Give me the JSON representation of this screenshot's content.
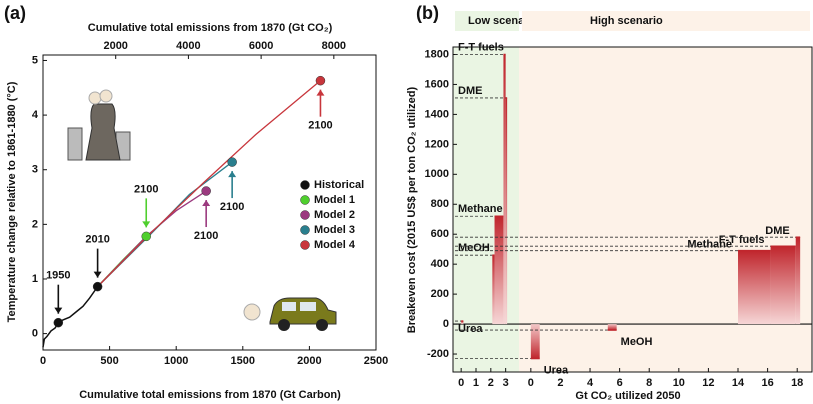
{
  "chart_data": [
    {
      "type": "line",
      "panel_label": "(a)",
      "xlabel": "Cumulative total emissions from 1870 (Gt Carbon)",
      "x2label": "Cumulative total emissions from 1870 (Gt CO₂)",
      "ylabel": "Temperature change relative to 1861-1880 (°C)",
      "xlim": [
        0,
        2500
      ],
      "xticks": [
        0,
        500,
        1000,
        1500,
        2000,
        2500
      ],
      "x2lim": [
        0,
        9160
      ],
      "x2ticks": [
        2000,
        4000,
        6000,
        8000
      ],
      "ylim": [
        -0.3,
        5.1
      ],
      "yticks": [
        0,
        1,
        2,
        3,
        4,
        5
      ],
      "series": [
        {
          "name": "Historical",
          "color": "#111111",
          "x": [
            0,
            10,
            30,
            60,
            90,
            115,
            150,
            200,
            250,
            300,
            350,
            410
          ],
          "values": [
            -0.25,
            -0.1,
            -0.05,
            0.05,
            0.1,
            0.2,
            0.25,
            0.3,
            0.4,
            0.5,
            0.65,
            0.86
          ]
        },
        {
          "name": "Model 1",
          "color": "#4fcf2e",
          "x": [
            410,
            600,
            775
          ],
          "values": [
            0.86,
            1.35,
            1.78
          ]
        },
        {
          "name": "Model 2",
          "color": "#9b3a7f",
          "x": [
            410,
            775,
            1000,
            1225
          ],
          "values": [
            0.86,
            1.78,
            2.25,
            2.61
          ]
        },
        {
          "name": "Model 3",
          "color": "#2a7f8e",
          "x": [
            410,
            800,
            1100,
            1420
          ],
          "values": [
            0.86,
            1.8,
            2.55,
            3.14
          ]
        },
        {
          "name": "Model 4",
          "color": "#c8363c",
          "x": [
            410,
            800,
            1200,
            1600,
            2083
          ],
          "values": [
            0.86,
            1.82,
            2.75,
            3.65,
            4.63
          ]
        }
      ],
      "annotations": [
        {
          "text": "1950",
          "x": 115,
          "y": 0.2,
          "color": "#111111",
          "side": "above"
        },
        {
          "text": "2010",
          "x": 410,
          "y": 0.86,
          "color": "#111111",
          "side": "above"
        },
        {
          "text": "2100",
          "x": 775,
          "y": 1.78,
          "color": "#4fcf2e",
          "side": "above"
        },
        {
          "text": "2100",
          "x": 1225,
          "y": 2.61,
          "color": "#9b3a7f",
          "side": "below"
        },
        {
          "text": "2100",
          "x": 1420,
          "y": 3.14,
          "color": "#2a7f8e",
          "side": "below"
        },
        {
          "text": "2100",
          "x": 2083,
          "y": 4.63,
          "color": "#c8363c",
          "side": "below"
        }
      ]
    },
    {
      "type": "breakeven",
      "panel_label": "(b)",
      "xlabel": "Gt CO₂ utilized 2050",
      "ylabel": "Breakeven cost (2015 US$ per ton CO₂ utilized)",
      "ylim": [
        -320,
        1850
      ],
      "yticks": [
        -200,
        0,
        200,
        400,
        600,
        800,
        1000,
        1200,
        1400,
        1600,
        1800
      ],
      "scenarios": [
        {
          "name": "Low scenario",
          "color": "#8cc65a",
          "background": "#eaf5e3",
          "xlim": [
            -0.55,
            3.9
          ],
          "xticks": [
            0,
            1,
            2,
            3
          ],
          "bars": [
            {
              "label": "Urea",
              "x": [
                0,
                0.15
              ],
              "value": 20
            },
            {
              "label": "MeOH",
              "x": [
                2.1,
                2.25
              ],
              "value": 460
            },
            {
              "label": "Methane",
              "x": [
                2.25,
                2.85
              ],
              "value": 720
            },
            {
              "label": "F-T fuels",
              "x": [
                2.85,
                3.0
              ],
              "value": 1800
            },
            {
              "label": "DME",
              "x": [
                3.0,
                3.1
              ],
              "value": 1510
            }
          ]
        },
        {
          "name": "High scenario",
          "color": "#f2a65e",
          "background": "#fdf2e8",
          "xlim": [
            -0.8,
            19
          ],
          "xticks": [
            0,
            2,
            4,
            6,
            8,
            10,
            12,
            14,
            16,
            18
          ],
          "bars": [
            {
              "label": "Urea",
              "x": [
                0,
                0.6
              ],
              "value": -230
            },
            {
              "label": "MeOH",
              "x": [
                5.2,
                5.8
              ],
              "value": -40
            },
            {
              "label": "Methane",
              "x": [
                14,
                16.2
              ],
              "value": 490
            },
            {
              "label": "F-T fuels",
              "x": [
                16.2,
                17.9
              ],
              "value": 520
            },
            {
              "label": "DME",
              "x": [
                17.9,
                18.2
              ],
              "value": 580
            }
          ]
        }
      ]
    }
  ]
}
